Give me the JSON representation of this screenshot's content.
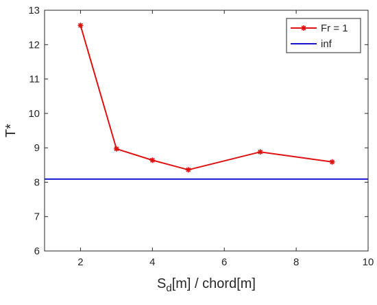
{
  "chart_data": {
    "type": "line",
    "title": "",
    "xlabel_main": "S",
    "xlabel_sub": "d",
    "xlabel_rest": "[m] / chord[m]",
    "ylabel": "T*",
    "xlim": [
      1,
      10
    ],
    "ylim": [
      6,
      13
    ],
    "xticks": [
      2,
      4,
      6,
      8,
      10
    ],
    "xtick_labels": [
      "2",
      "4",
      "6",
      "8",
      "10"
    ],
    "yticks": [
      6,
      7,
      8,
      9,
      10,
      11,
      12,
      13
    ],
    "ytick_labels": [
      "6",
      "7",
      "8",
      "9",
      "10",
      "11",
      "12",
      "13"
    ],
    "grid": false,
    "legend_position": "top-right",
    "series": [
      {
        "name": "Fr = 1",
        "color": "#e01010",
        "marker": "asterisk",
        "x": [
          2,
          3,
          4,
          5,
          7,
          9
        ],
        "y": [
          12.56,
          8.97,
          8.64,
          8.36,
          8.88,
          8.59
        ]
      },
      {
        "name": "inf",
        "color": "#1515d0",
        "marker": "none",
        "type": "hline",
        "y": 8.09
      }
    ]
  }
}
